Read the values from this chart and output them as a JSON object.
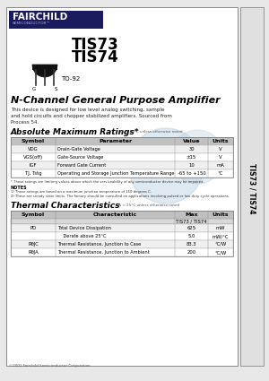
{
  "title1": "TIS73",
  "title2": "TIS74",
  "package": "TO-92",
  "section_title": "N-Channel General Purpose Amplifier",
  "desc_line1": "This device is designed for low level analog switching, sample",
  "desc_line2": "and hold circuits and chopper stabilized amplifiers. Sourced from",
  "desc_line3": "Process 54.",
  "abs_max_title": "Absolute Maximum Ratings*",
  "abs_max_sub": "* TA = 25°C unless otherwise noted",
  "abs_col_labels": [
    "Symbol",
    "Parameter",
    "Value",
    "Units"
  ],
  "abs_rows": [
    [
      "VDG",
      "Drain-Gate Voltage",
      "30",
      "V"
    ],
    [
      "VGS(off)",
      "Gate-Source Voltage",
      "±15",
      "V"
    ],
    [
      "IGF",
      "Forward Gate Current",
      "10",
      "mA"
    ],
    [
      "TJ, Tstg",
      "Operating and Storage Junction Temperature Range",
      "-65 to +150",
      "°C"
    ]
  ],
  "abs_footnote": "* These ratings are limiting values above which the serviceability of any semiconductor device may be impaired.",
  "notes_title": "NOTES",
  "note1": "1) These ratings are based on a maximum junction temperature of 150 degrees C.",
  "note2": "2) These are steady state limits. The factory should be consulted on applications involving pulsed or low duty cycle operations.",
  "thermal_title": "Thermal Characteristics",
  "thermal_sub": "TA = 25°C unless otherwise noted",
  "therm_col_labels": [
    "Symbol",
    "Characteristic",
    "Max",
    "Units"
  ],
  "therm_sub_header": "TIS73 / TIS74",
  "therm_rows": [
    [
      "PD",
      "Total Device Dissipation",
      "625",
      "mW"
    ],
    [
      "",
      "    Derate above 25°C",
      "5.0",
      "mW/°C"
    ],
    [
      "RθJC",
      "Thermal Resistance, Junction to Case",
      "83.3",
      "°C/W"
    ],
    [
      "RθJA",
      "Thermal Resistance, Junction to Ambient",
      "200",
      "°C/W"
    ]
  ],
  "side_label": "TIS73 / TIS74",
  "footer": "©2001 Fairchild Semiconductor Corporation",
  "bg_color": "#e8e8e8",
  "paper_color": "#ffffff",
  "logo_bg": "#1a1a5e",
  "table_hdr_bg": "#c0c0c0",
  "table_row_alt": "#f0f0f0",
  "watermark_color": "#b8cfe0"
}
